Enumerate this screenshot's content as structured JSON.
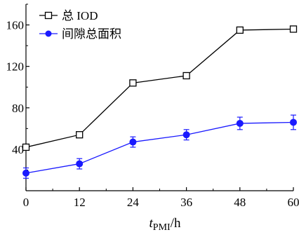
{
  "chart_data": {
    "type": "line",
    "title": "",
    "xlabel": "t_PMI/h",
    "xlabel_parts": {
      "main": "t",
      "sub": "PMI",
      "suffix": "/h"
    },
    "ylabel": "",
    "x": [
      0,
      12,
      24,
      36,
      48,
      60
    ],
    "xlim": [
      0,
      60
    ],
    "ylim": [
      0,
      180
    ],
    "xticks": [
      0,
      12,
      24,
      36,
      48,
      60
    ],
    "yticks": [
      40,
      80,
      120,
      160
    ],
    "xtick_labels": [
      "0",
      "12",
      "24",
      "36",
      "48",
      "60"
    ],
    "ytick_labels": [
      "40",
      "80",
      "120",
      "160"
    ],
    "grid": false,
    "legend_position": "top-left",
    "series": [
      {
        "name": "总 IOD",
        "marker": "open-square",
        "color": "#000000",
        "values": [
          42,
          54,
          104,
          111,
          155,
          156
        ]
      },
      {
        "name": "间隙总面积",
        "marker": "filled-circle",
        "color": "#1a1aff",
        "values": [
          17,
          26,
          47,
          54,
          65,
          66
        ],
        "error": [
          5,
          5,
          5,
          5,
          6,
          7
        ]
      }
    ]
  }
}
